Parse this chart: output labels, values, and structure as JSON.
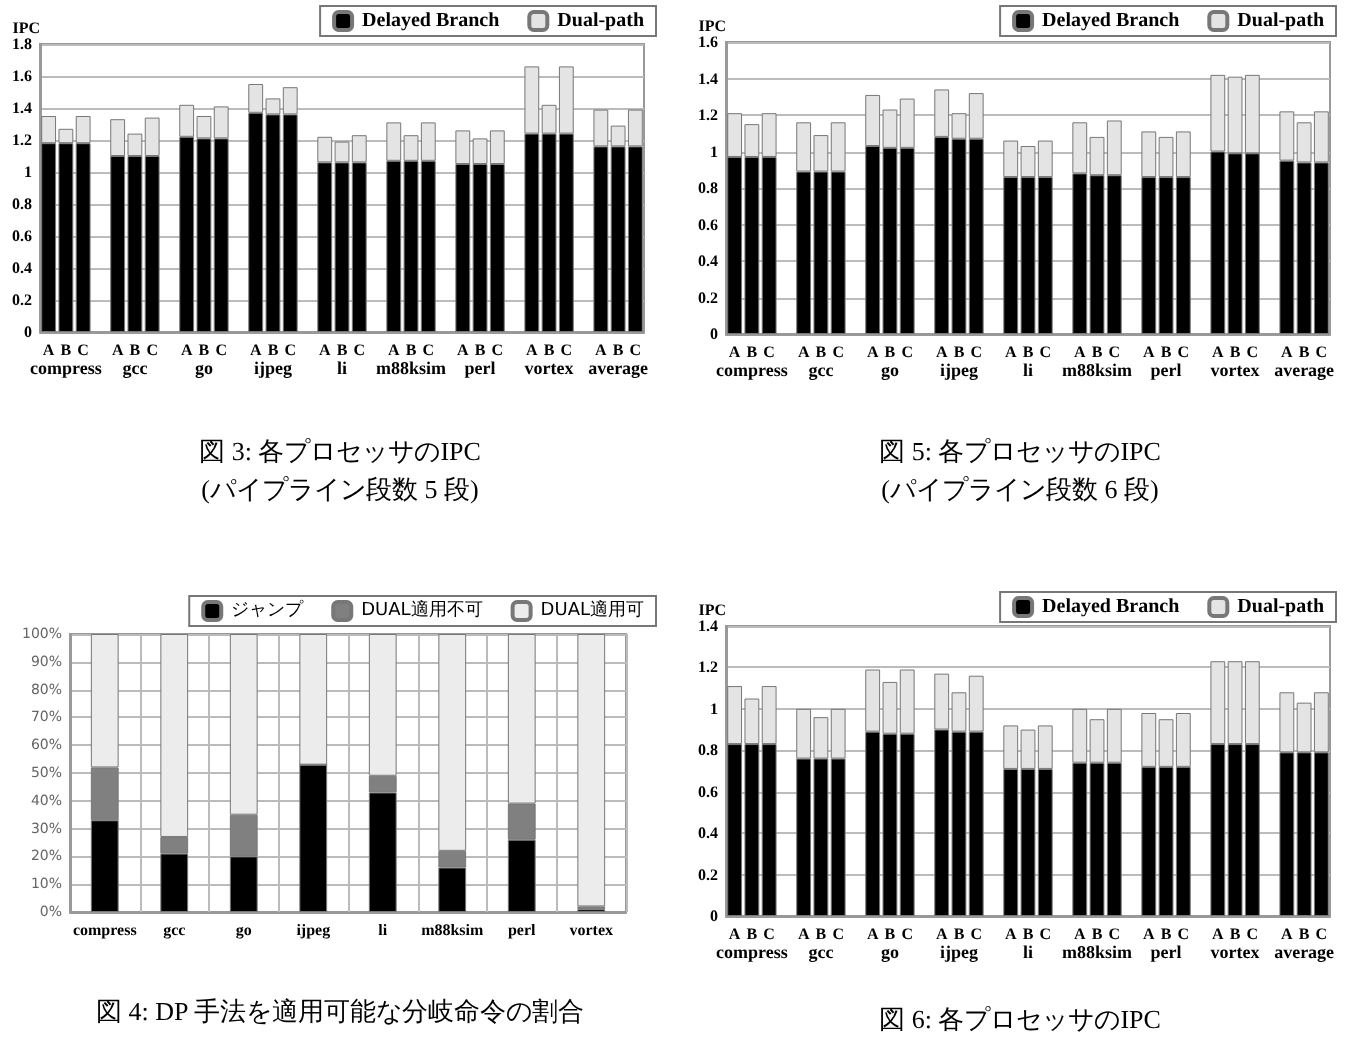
{
  "chart_data": [
    {
      "type": "bar",
      "title": "図 3: 各プロセッサのIPC",
      "subtitle": "(パイプライン段数 5 段)",
      "ylabel": "IPC",
      "stacked": true,
      "grid": "y",
      "legend": "top right",
      "categories": [
        "A",
        "B",
        "C",
        null,
        "A",
        "B",
        "C",
        null,
        "A",
        "B",
        "C",
        null,
        "A",
        "B",
        "C",
        null,
        "A",
        "B",
        "C",
        null,
        "A",
        "B",
        "C",
        null,
        "A",
        "B",
        "C",
        null,
        "A",
        "B",
        "C",
        null,
        "A",
        "B",
        "C"
      ],
      "annotations": [
        "compress",
        "gcc",
        "go",
        "ijpeg",
        "li",
        "m88ksim",
        "perl",
        "vortex",
        "average"
      ],
      "ylim": [
        0,
        1.8
      ],
      "yticks": [
        0,
        0.2,
        0.4,
        0.6,
        0.8,
        1,
        1.2,
        1.4,
        1.6,
        1.8
      ],
      "series": [
        {
          "name": "Delayed Branch",
          "color": "#000000",
          "values": [
            1.18,
            1.18,
            1.18,
            null,
            1.1,
            1.1,
            1.1,
            null,
            1.22,
            1.21,
            1.21,
            null,
            1.37,
            1.36,
            1.36,
            null,
            1.06,
            1.06,
            1.06,
            null,
            1.07,
            1.07,
            1.07,
            null,
            1.05,
            1.05,
            1.05,
            null,
            1.24,
            1.24,
            1.24,
            null,
            1.16,
            1.16,
            1.16
          ]
        },
        {
          "name": "Dual-path",
          "color": "#e4e4e4",
          "values": [
            0.17,
            0.09,
            0.17,
            null,
            0.23,
            0.14,
            0.24,
            null,
            0.2,
            0.14,
            0.2,
            null,
            0.18,
            0.1,
            0.17,
            null,
            0.16,
            0.13,
            0.17,
            null,
            0.24,
            0.16,
            0.24,
            null,
            0.21,
            0.16,
            0.21,
            null,
            0.42,
            0.18,
            0.42,
            null,
            0.23,
            0.13,
            0.23
          ]
        }
      ]
    },
    {
      "type": "bar",
      "title": "図 5: 各プロセッサのIPC",
      "subtitle": "(パイプライン段数 6 段)",
      "ylabel": "IPC",
      "stacked": true,
      "grid": "y",
      "legend": "top right",
      "categories": [
        "A",
        "B",
        "C",
        null,
        "A",
        "B",
        "C",
        null,
        "A",
        "B",
        "C",
        null,
        "A",
        "B",
        "C",
        null,
        "A",
        "B",
        "C",
        null,
        "A",
        "B",
        "C",
        null,
        "A",
        "B",
        "C",
        null,
        "A",
        "B",
        "C",
        null,
        "A",
        "B",
        "C"
      ],
      "annotations": [
        "compress",
        "gcc",
        "go",
        "ijpeg",
        "li",
        "m88ksim",
        "perl",
        "vortex",
        "average"
      ],
      "ylim": [
        0,
        1.6
      ],
      "yticks": [
        0,
        0.2,
        0.4,
        0.6,
        0.8,
        1,
        1.2,
        1.4,
        1.6
      ],
      "series": [
        {
          "name": "Delayed Branch",
          "color": "#000000",
          "values": [
            0.97,
            0.97,
            0.97,
            null,
            0.89,
            0.89,
            0.89,
            null,
            1.03,
            1.02,
            1.02,
            null,
            1.08,
            1.07,
            1.07,
            null,
            0.86,
            0.86,
            0.86,
            null,
            0.88,
            0.87,
            0.87,
            null,
            0.86,
            0.86,
            0.86,
            null,
            1.0,
            0.99,
            0.99,
            null,
            0.95,
            0.94,
            0.94
          ]
        },
        {
          "name": "Dual-path",
          "color": "#e4e4e4",
          "values": [
            0.24,
            0.18,
            0.24,
            null,
            0.27,
            0.2,
            0.27,
            null,
            0.28,
            0.21,
            0.27,
            null,
            0.26,
            0.14,
            0.25,
            null,
            0.2,
            0.17,
            0.2,
            null,
            0.28,
            0.21,
            0.3,
            null,
            0.25,
            0.22,
            0.25,
            null,
            0.42,
            0.42,
            0.43,
            null,
            0.27,
            0.22,
            0.28
          ]
        }
      ]
    },
    {
      "type": "bar",
      "title": "図 4: DP 手法を適用可能な分岐命令の割合",
      "stacked": true,
      "grid": true,
      "legend": "top right",
      "categories": [
        "compress",
        "gcc",
        "go",
        "ijpeg",
        "li",
        "m88ksim",
        "perl",
        "vortex"
      ],
      "ylim": [
        0,
        100
      ],
      "yticks": [
        {
          "value": 0,
          "label": "0%"
        },
        {
          "value": 10,
          "label": "10%"
        },
        {
          "value": 20,
          "label": "20%"
        },
        {
          "value": 30,
          "label": "30%"
        },
        {
          "value": 40,
          "label": "40%"
        },
        {
          "value": 50,
          "label": "50%"
        },
        {
          "value": 60,
          "label": "60%"
        },
        {
          "value": 70,
          "label": "70%"
        },
        {
          "value": 80,
          "label": "80%"
        },
        {
          "value": 90,
          "label": "90%"
        },
        {
          "value": 100,
          "label": "100%"
        }
      ],
      "series": [
        {
          "name": "ジャンプ",
          "color": "#000000",
          "values": [
            33,
            21,
            20,
            53,
            43,
            16,
            26,
            1
          ]
        },
        {
          "name": "DUAL適用不可",
          "color": "#808080",
          "values": [
            19,
            6,
            15,
            0,
            6,
            6,
            13,
            1
          ]
        },
        {
          "name": "DUAL適用可",
          "color": "#ececec",
          "values": [
            48,
            73,
            65,
            47,
            51,
            78,
            61,
            98
          ]
        }
      ]
    },
    {
      "type": "bar",
      "title": "図 6: 各プロセッサのIPC",
      "ylabel": "IPC",
      "stacked": true,
      "grid": "y",
      "legend": "top right",
      "categories": [
        "A",
        "B",
        "C",
        null,
        "A",
        "B",
        "C",
        null,
        "A",
        "B",
        "C",
        null,
        "A",
        "B",
        "C",
        null,
        "A",
        "B",
        "C",
        null,
        "A",
        "B",
        "C",
        null,
        "A",
        "B",
        "C",
        null,
        "A",
        "B",
        "C",
        null,
        "A",
        "B",
        "C"
      ],
      "annotations": [
        "compress",
        "gcc",
        "go",
        "ijpeg",
        "li",
        "m88ksim",
        "perl",
        "vortex",
        "average"
      ],
      "ylim": [
        0,
        1.4
      ],
      "yticks": [
        0,
        0.2,
        0.4,
        0.6,
        0.8,
        1,
        1.2,
        1.4
      ],
      "series": [
        {
          "name": "Delayed Branch",
          "color": "#000000",
          "values": [
            0.83,
            0.83,
            0.83,
            null,
            0.76,
            0.76,
            0.76,
            null,
            0.89,
            0.88,
            0.88,
            null,
            0.9,
            0.89,
            0.89,
            null,
            0.71,
            0.71,
            0.71,
            null,
            0.74,
            0.74,
            0.74,
            null,
            0.72,
            0.72,
            0.72,
            null,
            0.83,
            0.83,
            0.83,
            null,
            0.79,
            0.79,
            0.79
          ]
        },
        {
          "name": "Dual-path",
          "color": "#e4e4e4",
          "values": [
            0.28,
            0.22,
            0.28,
            null,
            0.24,
            0.2,
            0.24,
            null,
            0.3,
            0.25,
            0.31,
            null,
            0.27,
            0.19,
            0.27,
            null,
            0.21,
            0.19,
            0.21,
            null,
            0.26,
            0.21,
            0.26,
            null,
            0.26,
            0.23,
            0.26,
            null,
            0.4,
            0.4,
            0.4,
            null,
            0.29,
            0.24,
            0.29
          ]
        }
      ]
    }
  ]
}
